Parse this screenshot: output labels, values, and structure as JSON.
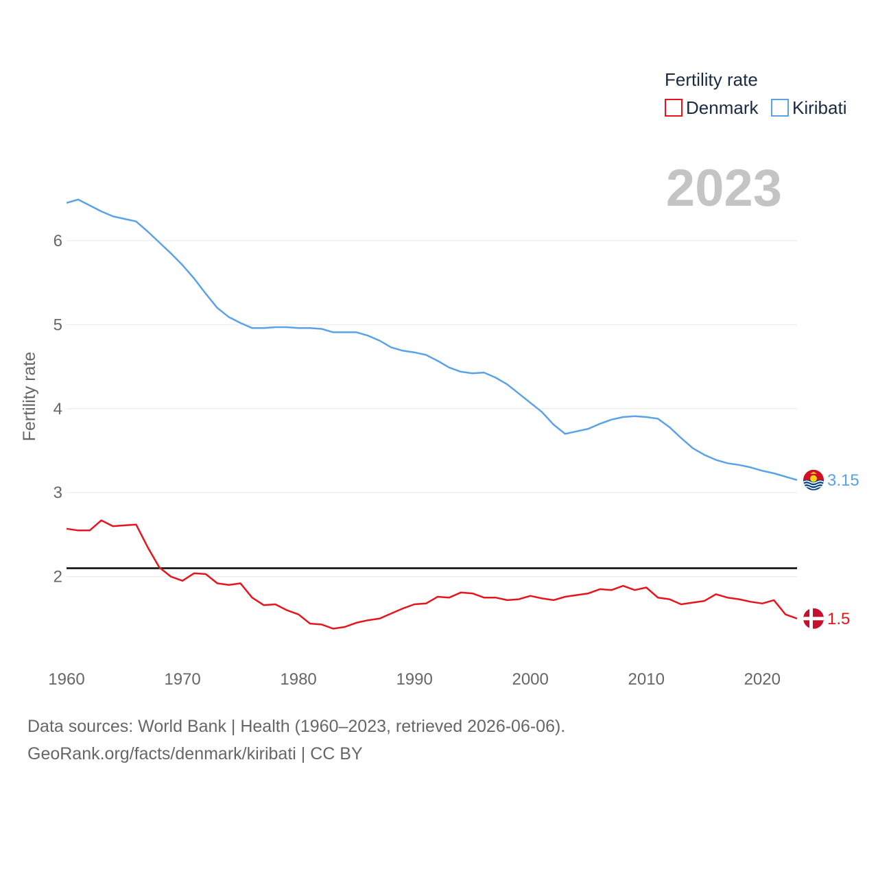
{
  "chart_data": {
    "type": "line",
    "legend_title": "Fertility rate",
    "ylabel": "Fertility rate",
    "xlabel": "",
    "year_display": "2023",
    "x": [
      1960,
      1961,
      1962,
      1963,
      1964,
      1965,
      1966,
      1967,
      1968,
      1969,
      1970,
      1971,
      1972,
      1973,
      1974,
      1975,
      1976,
      1977,
      1978,
      1979,
      1980,
      1981,
      1982,
      1983,
      1984,
      1985,
      1986,
      1987,
      1988,
      1989,
      1990,
      1991,
      1992,
      1993,
      1994,
      1995,
      1996,
      1997,
      1998,
      1999,
      2000,
      2001,
      2002,
      2003,
      2004,
      2005,
      2006,
      2007,
      2008,
      2009,
      2010,
      2011,
      2012,
      2013,
      2014,
      2015,
      2016,
      2017,
      2018,
      2019,
      2020,
      2021,
      2022,
      2023
    ],
    "xlim": [
      1960,
      2023
    ],
    "ylim": [
      1.0,
      6.8
    ],
    "xticks": [
      "1960",
      "1970",
      "1980",
      "1990",
      "2000",
      "2010",
      "2020"
    ],
    "yticks": [
      "2",
      "3",
      "4",
      "5",
      "6"
    ],
    "series": [
      {
        "name": "Denmark",
        "color": "#e8141c",
        "icon": "denmark-flag-icon",
        "end_label": "1.5",
        "values": [
          2.57,
          2.55,
          2.55,
          2.67,
          2.6,
          2.61,
          2.62,
          2.35,
          2.11,
          2.0,
          1.95,
          2.04,
          2.03,
          1.92,
          1.9,
          1.92,
          1.75,
          1.66,
          1.67,
          1.6,
          1.55,
          1.44,
          1.43,
          1.38,
          1.4,
          1.45,
          1.48,
          1.5,
          1.56,
          1.62,
          1.67,
          1.68,
          1.76,
          1.75,
          1.81,
          1.8,
          1.75,
          1.75,
          1.72,
          1.73,
          1.77,
          1.74,
          1.72,
          1.76,
          1.78,
          1.8,
          1.85,
          1.84,
          1.89,
          1.84,
          1.87,
          1.75,
          1.73,
          1.67,
          1.69,
          1.71,
          1.79,
          1.75,
          1.73,
          1.7,
          1.68,
          1.72,
          1.55,
          1.5
        ]
      },
      {
        "name": "Kiribati",
        "color": "#5aa2e8",
        "icon": "kiribati-flag-icon",
        "end_label": "3.15",
        "values": [
          6.45,
          6.49,
          6.42,
          6.35,
          6.29,
          6.26,
          6.23,
          6.11,
          5.98,
          5.85,
          5.71,
          5.55,
          5.37,
          5.2,
          5.09,
          5.02,
          4.96,
          4.96,
          4.97,
          4.97,
          4.96,
          4.96,
          4.95,
          4.91,
          4.91,
          4.91,
          4.87,
          4.81,
          4.73,
          4.69,
          4.67,
          4.64,
          4.57,
          4.49,
          4.44,
          4.42,
          4.43,
          4.37,
          4.29,
          4.18,
          4.07,
          3.96,
          3.81,
          3.7,
          3.73,
          3.76,
          3.82,
          3.87,
          3.9,
          3.91,
          3.9,
          3.88,
          3.78,
          3.65,
          3.53,
          3.45,
          3.39,
          3.35,
          3.33,
          3.3,
          3.26,
          3.23,
          3.19,
          3.15
        ]
      }
    ],
    "reference_line": {
      "value": 2.1,
      "color": "#000000"
    }
  },
  "footer": {
    "sources": "Data sources: World Bank | Health (1960–2023, retrieved 2026-06-06).",
    "credit": "GeoRank.org/facts/denmark/kiribati | CC BY"
  }
}
